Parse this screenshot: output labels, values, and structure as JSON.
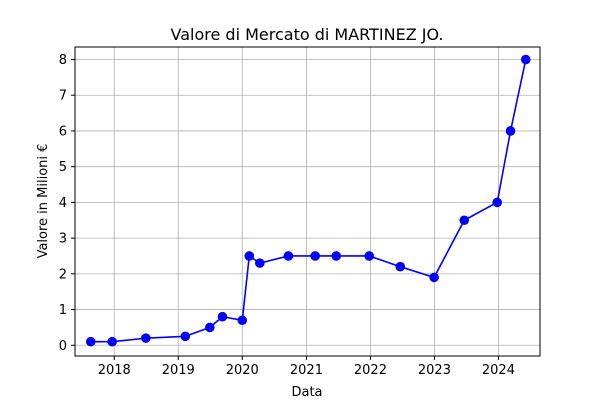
{
  "chart_data": {
    "type": "line",
    "title": "Valore di Mercato di MARTINEZ JO.",
    "xlabel": "Data",
    "ylabel": "Valore in Milioni €",
    "grid": true,
    "xlim": [
      "2017-05-22",
      "2024-08-25"
    ],
    "ylim": [
      -0.3,
      8.35
    ],
    "x_ticks": [
      {
        "date": "2018-01-01",
        "label": "2018"
      },
      {
        "date": "2019-01-01",
        "label": "2019"
      },
      {
        "date": "2020-01-01",
        "label": "2020"
      },
      {
        "date": "2021-01-01",
        "label": "2021"
      },
      {
        "date": "2022-01-01",
        "label": "2022"
      },
      {
        "date": "2023-01-01",
        "label": "2023"
      },
      {
        "date": "2024-01-01",
        "label": "2024"
      }
    ],
    "y_ticks": [
      0,
      1,
      2,
      3,
      4,
      5,
      6,
      7,
      8
    ],
    "series": [
      {
        "color": "#0000ff",
        "marker": "circle",
        "x": [
          "2017-08-20",
          "2017-12-20",
          "2018-06-30",
          "2019-02-10",
          "2019-06-30",
          "2019-09-10",
          "2020-01-01",
          "2020-02-10",
          "2020-04-10",
          "2020-09-20",
          "2021-02-20",
          "2021-06-20",
          "2021-12-25",
          "2022-06-20",
          "2022-12-30",
          "2023-06-20",
          "2023-12-25",
          "2024-03-10",
          "2024-06-05"
        ],
        "y": [
          0.1,
          0.1,
          0.2,
          0.25,
          0.5,
          0.8,
          0.7,
          2.5,
          2.3,
          2.5,
          2.5,
          2.5,
          2.5,
          2.2,
          1.9,
          3.5,
          4.0,
          6.0,
          8.0
        ]
      }
    ]
  }
}
